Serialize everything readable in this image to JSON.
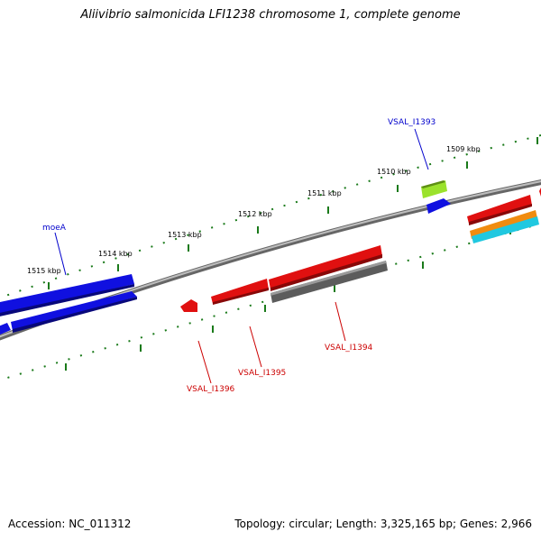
{
  "title": "Aliivibrio salmonicida LFI1238 chromosome 1, complete genome",
  "footer": {
    "accession": "Accession: NC_011312",
    "topology": "Topology: circular; Length: 3,325,165 bp; Genes: 2,966"
  },
  "kbp_labels": [
    "1509 kbp",
    "1510 kbp",
    "1511 kbp",
    "1512 kbp",
    "1513 kbp",
    "1514 kbp",
    "1515 kbp"
  ],
  "gene_labels": {
    "moeA": "moeA",
    "vsal_i1393": "VSAL_I1393",
    "vsal_i1394": "VSAL_I1394",
    "vsal_i1395": "VSAL_I1395",
    "vsal_i1396": "VSAL_I1396"
  },
  "colors": {
    "backbone": "#808080",
    "tick": "#1a7a1a",
    "blue_gene": "#1010e0",
    "red_gene": "#e01010",
    "gray_gene": "#606060",
    "green_gene": "#9be22c",
    "orange_gene": "#f08c10",
    "cyan_gene": "#20c8e0",
    "blue_label": "#0000cc",
    "red_label": "#cc0000"
  }
}
